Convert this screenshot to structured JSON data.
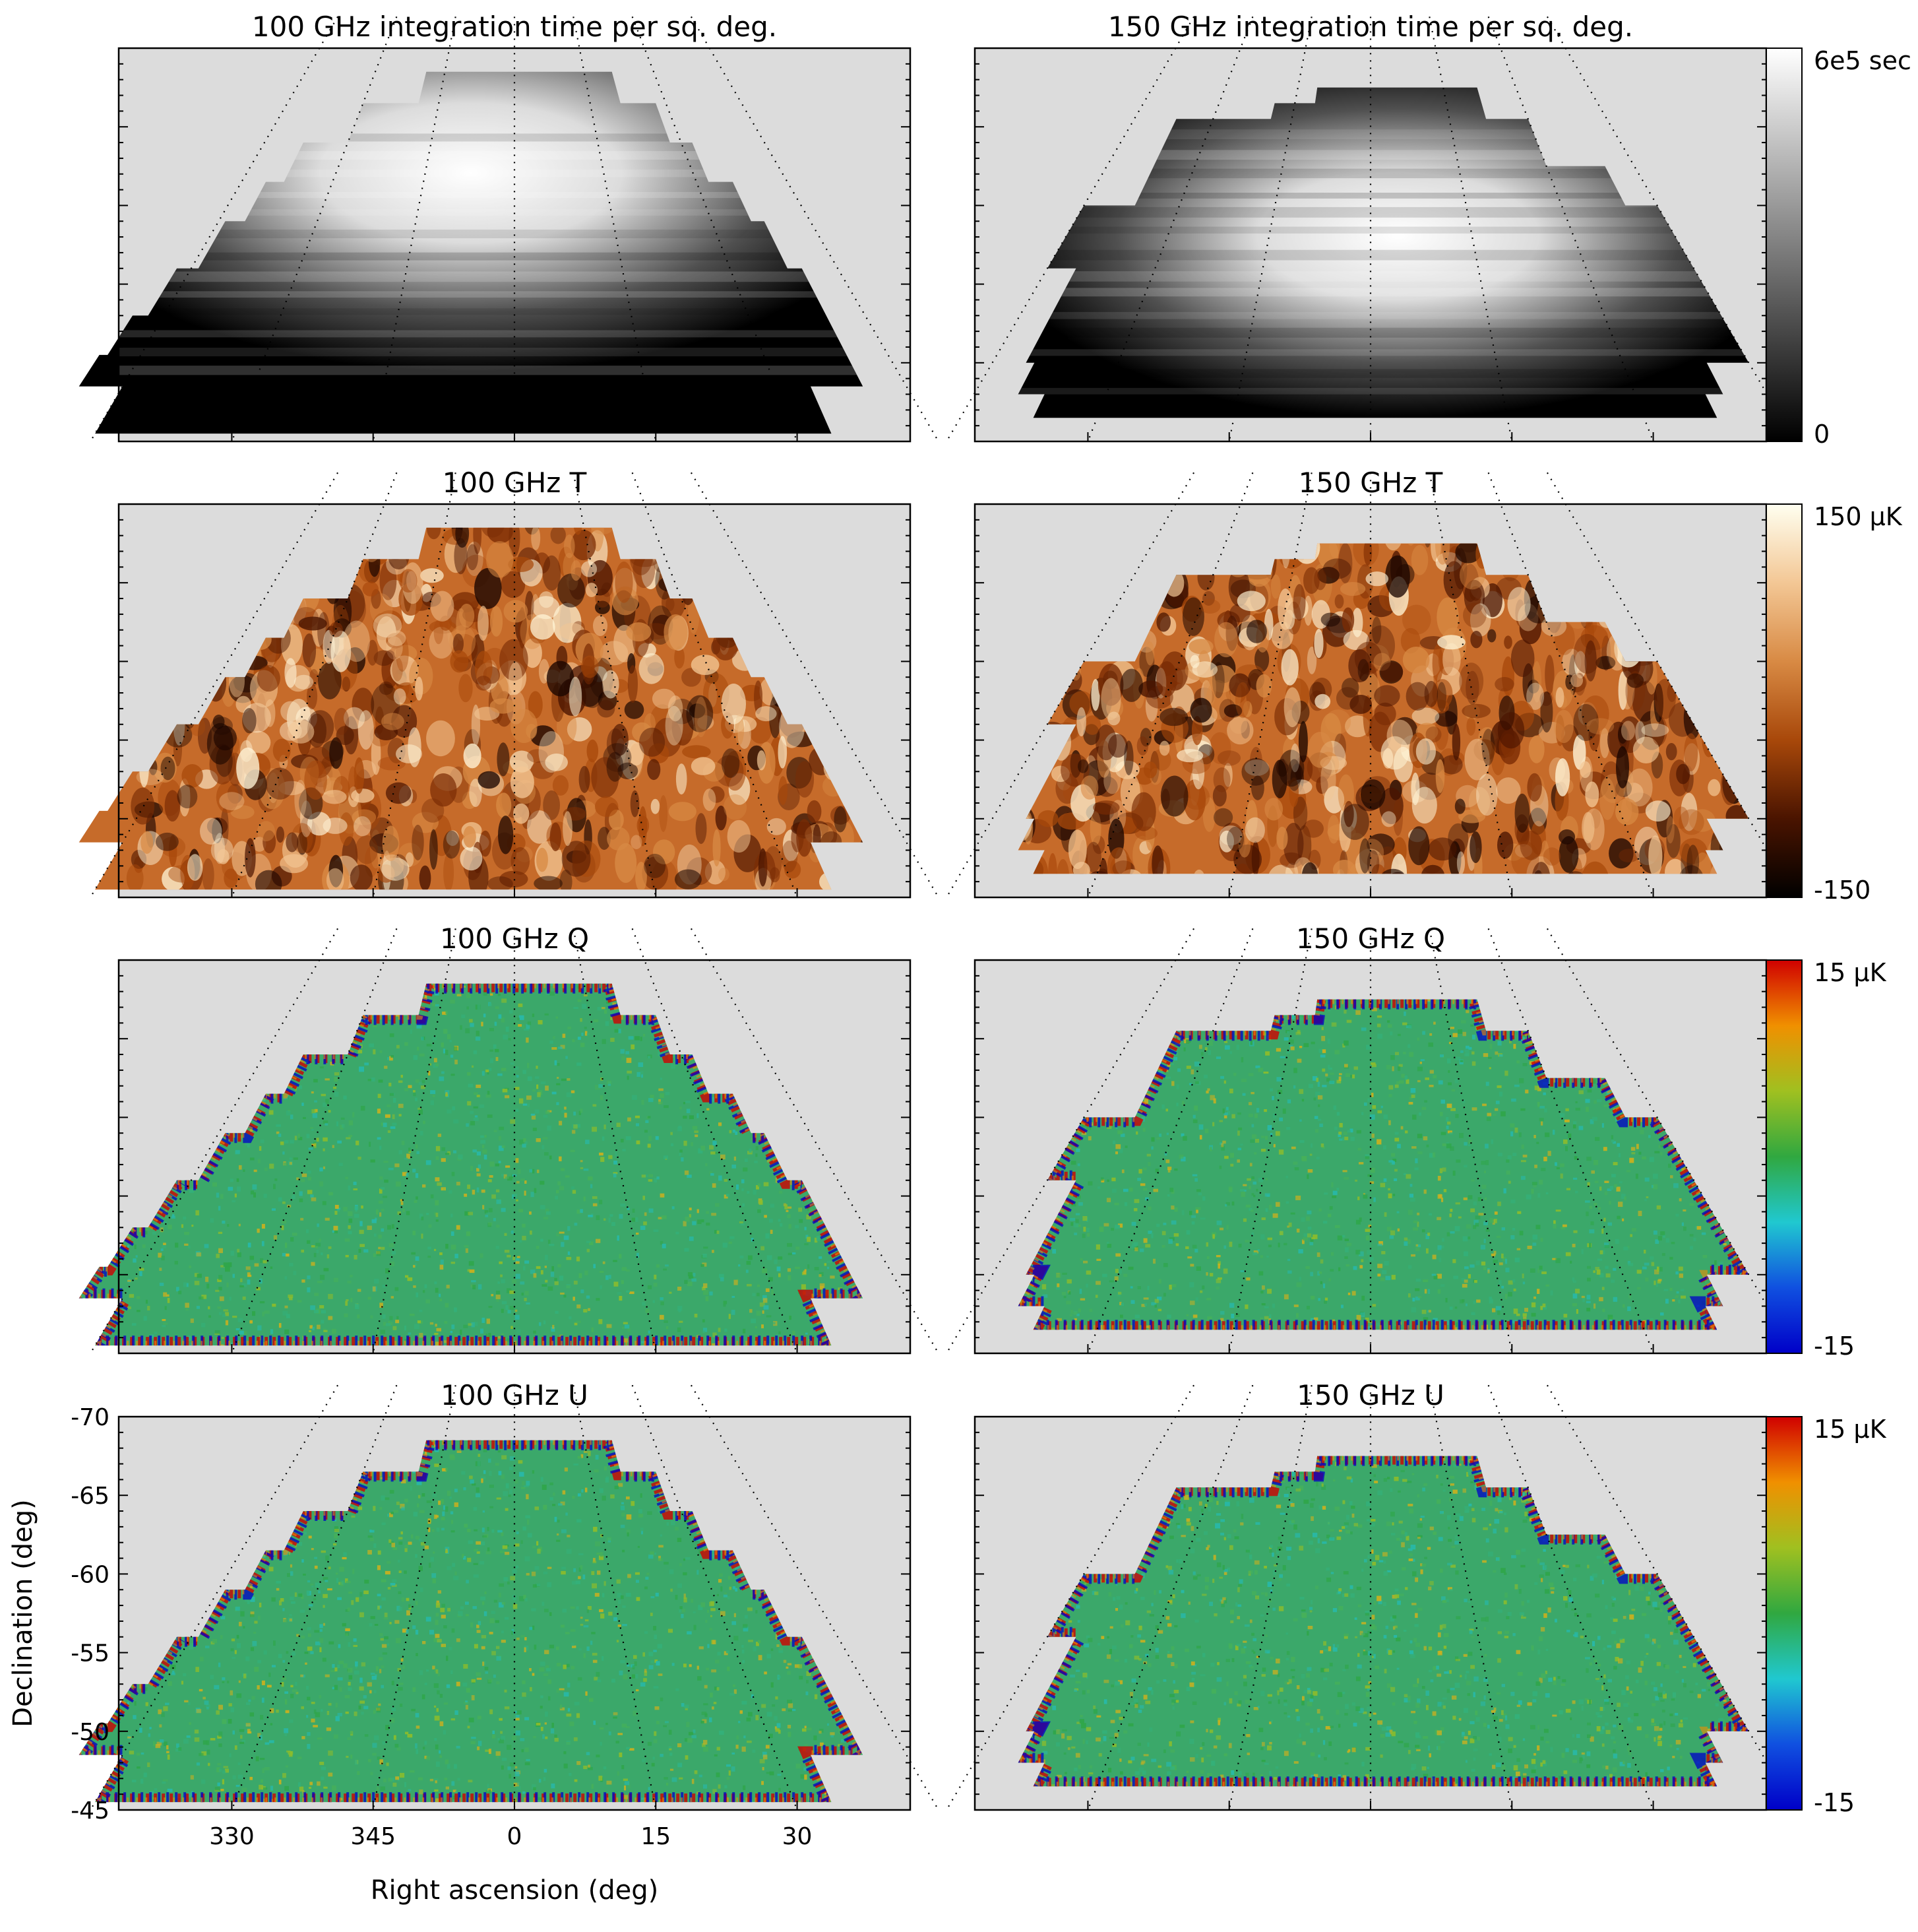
{
  "figure": {
    "ylabel": "Declination (deg)",
    "xlabel": "Right ascension (deg)"
  },
  "rows": [
    {
      "kind": "hits",
      "cbar": {
        "type": "grayscale",
        "top_label": "6e5 sec",
        "bottom_label": "0"
      }
    },
    {
      "kind": "temperature",
      "cbar": {
        "type": "sequential",
        "top_label": "150 μK",
        "bottom_label": "-150"
      }
    },
    {
      "kind": "polarization",
      "cbar": {
        "type": "diverging",
        "top_label": "15 μK",
        "bottom_label": "-15"
      }
    },
    {
      "kind": "polarization",
      "cbar": {
        "type": "diverging",
        "top_label": "15 μK",
        "bottom_label": "-15"
      }
    }
  ],
  "panels": [
    {
      "title": "100 GHz integration time per sq. deg.",
      "band": "100",
      "map": "integration"
    },
    {
      "title": "150 GHz integration time per sq. deg.",
      "band": "150",
      "map": "integration"
    },
    {
      "title": "100 GHz T",
      "band": "100",
      "map": "T"
    },
    {
      "title": "150 GHz T",
      "band": "150",
      "map": "T"
    },
    {
      "title": "100 GHz Q",
      "band": "100",
      "map": "Q"
    },
    {
      "title": "150 GHz Q",
      "band": "150",
      "map": "Q"
    },
    {
      "title": "100 GHz U",
      "band": "100",
      "map": "U"
    },
    {
      "title": "150 GHz U",
      "band": "150",
      "map": "U"
    }
  ],
  "colors": {
    "background_mask": "#dcdcdc",
    "hits": [
      "#000000",
      "#ffffff"
    ],
    "temperature": [
      "#000000",
      "#4a1400",
      "#a8480a",
      "#d88a44",
      "#f3c795",
      "#fffff0"
    ],
    "polarization": [
      "#0000c8",
      "#1050e0",
      "#20c8d0",
      "#30a840",
      "#a0c020",
      "#f09000",
      "#d00000"
    ]
  },
  "chart_data": {
    "type": "heatmap",
    "description_axes": {
      "x_ticks": [
        330,
        345,
        0,
        15,
        30
      ],
      "y_ticks": [
        -70,
        -65,
        -60,
        -55,
        -50,
        -45
      ],
      "xlim_ra": [
        318,
        42
      ],
      "ylim_dec": [
        -70,
        -45
      ]
    },
    "maps": [
      {
        "name": "100 GHz integration time per sq. deg.",
        "colorbar_range": [
          0,
          600000
        ],
        "unit": "sec"
      },
      {
        "name": "150 GHz integration time per sq. deg.",
        "colorbar_range": [
          0,
          600000
        ],
        "unit": "sec"
      },
      {
        "name": "100 GHz T",
        "colorbar_range": [
          -150,
          150
        ],
        "unit": "μK"
      },
      {
        "name": "150 GHz T",
        "colorbar_range": [
          -150,
          150
        ],
        "unit": "μK"
      },
      {
        "name": "100 GHz Q",
        "colorbar_range": [
          -15,
          15
        ],
        "unit": "μK"
      },
      {
        "name": "150 GHz Q",
        "colorbar_range": [
          -15,
          15
        ],
        "unit": "μK"
      },
      {
        "name": "100 GHz U",
        "colorbar_range": [
          -15,
          15
        ],
        "unit": "μK"
      },
      {
        "name": "150 GHz U",
        "colorbar_range": [
          -15,
          15
        ],
        "unit": "μK"
      }
    ],
    "footprint_100GHz_dec_ra": [
      [
        -68.5,
        -19,
        21
      ],
      [
        -66.5,
        -30,
        28
      ],
      [
        -64,
        -38,
        32
      ],
      [
        -61.5,
        -41,
        36
      ],
      [
        -59,
        -44,
        38
      ],
      [
        -56,
        -47,
        40
      ],
      [
        -53,
        -49,
        40
      ],
      [
        -50.5,
        -50,
        40
      ],
      [
        -48.5,
        -45,
        34
      ],
      [
        -47,
        -45,
        34
      ]
    ],
    "footprint_150GHz_dec_ra": [
      [
        -67.5,
        -11,
        22
      ],
      [
        -66.5,
        -19,
        22
      ],
      [
        -65.5,
        -37,
        30
      ],
      [
        -62.5,
        -37,
        40
      ],
      [
        -60,
        -45,
        45
      ],
      [
        -56,
        -41,
        45
      ],
      [
        -53.5,
        -41,
        45
      ],
      [
        -50,
        -40,
        40
      ],
      [
        -48,
        -37,
        38
      ]
    ]
  }
}
